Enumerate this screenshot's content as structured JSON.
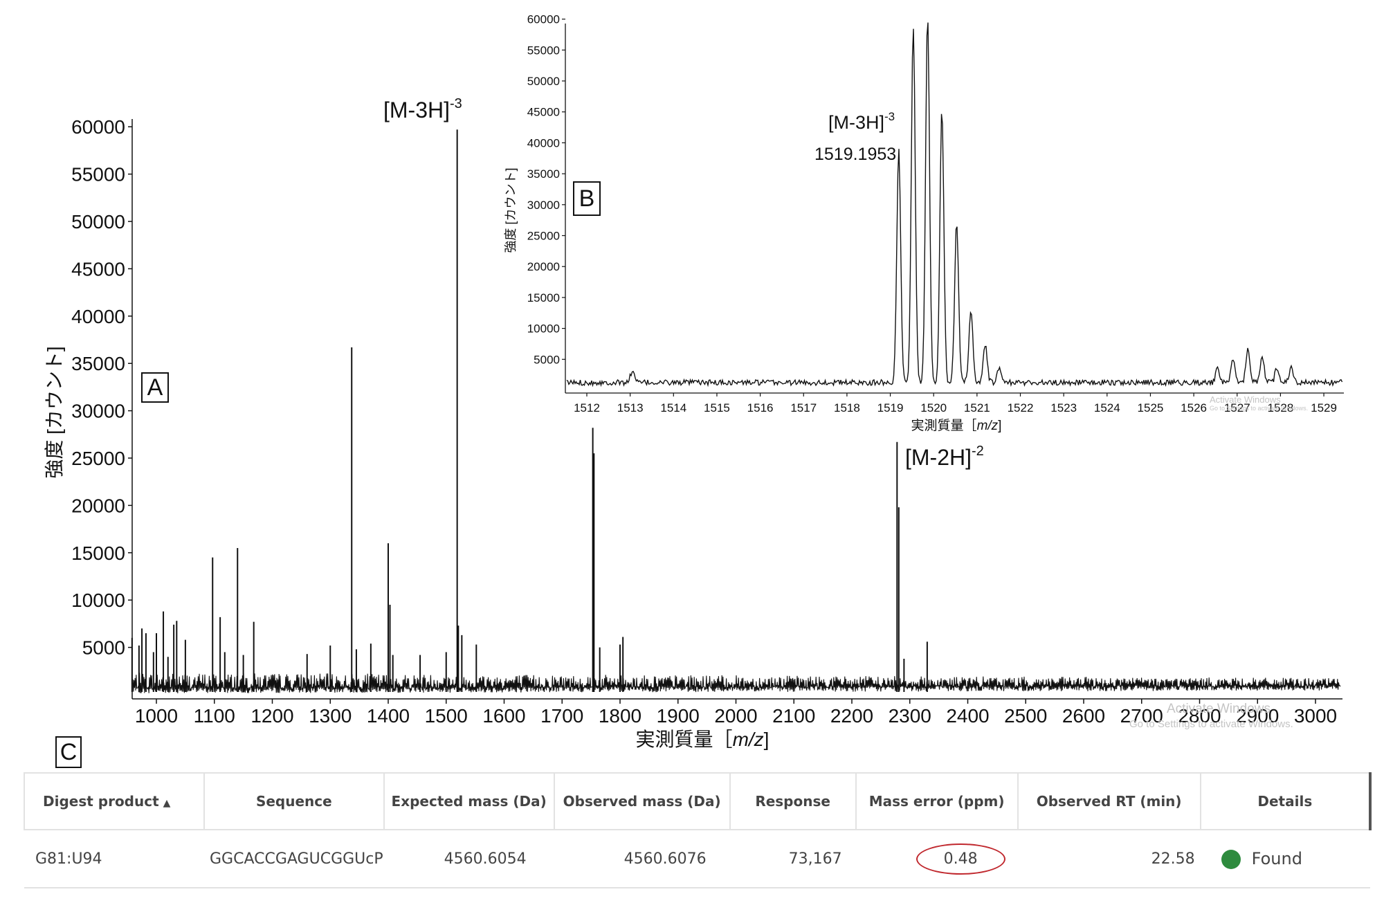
{
  "chart_data": [
    {
      "panel": "A",
      "type": "line",
      "ylabel": "強度 [カウント]",
      "xlabel": "実測質量［m/z]",
      "xlim": [
        955,
        3030
      ],
      "ylim": [
        0,
        61000
      ],
      "x_ticks": [
        1000,
        1100,
        1200,
        1300,
        1400,
        1500,
        1600,
        1700,
        1800,
        1900,
        2000,
        2100,
        2200,
        2300,
        2400,
        2500,
        2600,
        2700,
        2800,
        2900,
        3000
      ],
      "y_ticks": [
        5000,
        10000,
        15000,
        20000,
        25000,
        30000,
        35000,
        40000,
        45000,
        50000,
        55000,
        60000
      ],
      "grid": false,
      "peaks": [
        {
          "x": 958,
          "y": 6000
        },
        {
          "x": 970,
          "y": 5200
        },
        {
          "x": 975,
          "y": 7000
        },
        {
          "x": 982,
          "y": 6500
        },
        {
          "x": 995,
          "y": 4500
        },
        {
          "x": 1000,
          "y": 6500
        },
        {
          "x": 1012,
          "y": 8800
        },
        {
          "x": 1020,
          "y": 4000
        },
        {
          "x": 1030,
          "y": 7400
        },
        {
          "x": 1035,
          "y": 7800
        },
        {
          "x": 1050,
          "y": 5800
        },
        {
          "x": 1097,
          "y": 14500
        },
        {
          "x": 1110,
          "y": 8200
        },
        {
          "x": 1118,
          "y": 4500
        },
        {
          "x": 1140,
          "y": 15500
        },
        {
          "x": 1150,
          "y": 4200
        },
        {
          "x": 1168,
          "y": 7700
        },
        {
          "x": 1260,
          "y": 4300
        },
        {
          "x": 1300,
          "y": 5200
        },
        {
          "x": 1337,
          "y": 36700
        },
        {
          "x": 1345,
          "y": 4800
        },
        {
          "x": 1370,
          "y": 5400
        },
        {
          "x": 1400,
          "y": 16000
        },
        {
          "x": 1403,
          "y": 9500
        },
        {
          "x": 1408,
          "y": 4200
        },
        {
          "x": 1455,
          "y": 4200
        },
        {
          "x": 1500,
          "y": 4500
        },
        {
          "x": 1519,
          "y": 59700
        },
        {
          "x": 1521,
          "y": 7300
        },
        {
          "x": 1527,
          "y": 6300
        },
        {
          "x": 1552,
          "y": 5300
        },
        {
          "x": 1753,
          "y": 28200
        },
        {
          "x": 1755,
          "y": 25500
        },
        {
          "x": 1765,
          "y": 5000
        },
        {
          "x": 1800,
          "y": 5300
        },
        {
          "x": 1805,
          "y": 6100
        },
        {
          "x": 2278,
          "y": 26700
        },
        {
          "x": 2281,
          "y": 19800
        },
        {
          "x": 2290,
          "y": 3800
        },
        {
          "x": 2330,
          "y": 5600
        }
      ],
      "annotations": [
        {
          "text": "[M-3H]",
          "sup": "-3",
          "x": 1519
        },
        {
          "text": "[M-2H]",
          "sup": "-2",
          "x": 2278
        }
      ]
    },
    {
      "panel": "B",
      "type": "line",
      "ylabel": "強度 [カウント]",
      "xlabel": "実測質量［m/z]",
      "xlim": [
        1511.5,
        1529.4
      ],
      "ylim": [
        0,
        60500
      ],
      "x_ticks": [
        1512,
        1513,
        1514,
        1515,
        1516,
        1517,
        1518,
        1519,
        1520,
        1521,
        1522,
        1523,
        1524,
        1525,
        1526,
        1527,
        1528,
        1529
      ],
      "y_ticks": [
        5000,
        10000,
        15000,
        20000,
        25000,
        30000,
        35000,
        40000,
        45000,
        50000,
        55000,
        60000
      ],
      "grid": false,
      "peaks": [
        {
          "x": 1519.195,
          "y": 37500
        },
        {
          "x": 1519.53,
          "y": 57800
        },
        {
          "x": 1519.86,
          "y": 59600
        },
        {
          "x": 1520.19,
          "y": 44300
        },
        {
          "x": 1520.53,
          "y": 25800
        },
        {
          "x": 1520.86,
          "y": 11800
        },
        {
          "x": 1521.19,
          "y": 6000
        },
        {
          "x": 1521.52,
          "y": 2500
        },
        {
          "x": 1526.9,
          "y": 3700
        },
        {
          "x": 1527.25,
          "y": 5600
        },
        {
          "x": 1527.58,
          "y": 4000
        },
        {
          "x": 1527.92,
          "y": 2500
        },
        {
          "x": 1528.25,
          "y": 2600
        },
        {
          "x": 1526.55,
          "y": 2300
        },
        {
          "x": 1513.05,
          "y": 1900
        }
      ],
      "annotations": [
        {
          "text": "[M-3H]",
          "sup": "-3",
          "value": "1519.1953",
          "x": 1519.1953
        }
      ]
    }
  ],
  "panel_labels": {
    "a": "A",
    "b": "B",
    "c": "C"
  },
  "axis_titles": {
    "a_y": "強度 [カウント]",
    "a_x_prefix": "実測質量［",
    "a_x_italic": "m/z",
    "a_x_suffix": "]",
    "b_y": "強度 [カウント]",
    "b_x_prefix": "実測質量［",
    "b_x_italic": "m/z",
    "b_x_suffix": "]"
  },
  "table": {
    "headers": [
      "Digest product",
      "Sequence",
      "Expected mass (Da)",
      "Observed mass (Da)",
      "Response",
      "Mass error (ppm)",
      "Observed RT (min)",
      "Details"
    ],
    "sort_icon": "triangle-up",
    "row": {
      "digest_product": "G81:U94",
      "sequence": "GGCACCGAGUCGGUcP",
      "expected_mass": "4560.6054",
      "observed_mass": "4560.6076",
      "response": "73,167",
      "mass_error": "0.48",
      "observed_rt": "22.58",
      "status": "Found"
    }
  },
  "watermark": {
    "line1": "Activate Windows",
    "line2": "Go to Settings to activate Windows."
  },
  "colors": {
    "trace": "#111111",
    "found": "#2e8b3e",
    "highlight_ring": "#c0272d",
    "table_border": "#e2e2e2"
  }
}
